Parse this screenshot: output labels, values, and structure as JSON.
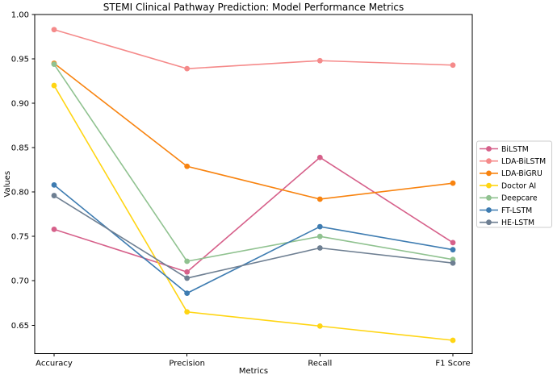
{
  "chart_data": {
    "type": "line",
    "title": "STEMI Clinical Pathway Prediction: Model Performance Metrics",
    "xlabel": "Metrics",
    "ylabel": "Values",
    "categories": [
      "Accuracy",
      "Precision",
      "Recall",
      "F1 Score"
    ],
    "series": [
      {
        "name": "BiLSTM",
        "color": "#d6608a",
        "values": [
          0.758,
          0.71,
          0.839,
          0.743
        ]
      },
      {
        "name": "LDA-BiLSTM",
        "color": "#f58a8a",
        "values": [
          0.983,
          0.939,
          0.948,
          0.943
        ]
      },
      {
        "name": "LDA-BiGRU",
        "color": "#f8830f",
        "values": [
          0.945,
          0.829,
          0.792,
          0.81
        ]
      },
      {
        "name": "Doctor AI",
        "color": "#ffd513",
        "values": [
          0.92,
          0.665,
          0.649,
          0.633
        ]
      },
      {
        "name": "Deepcare",
        "color": "#90c290",
        "values": [
          0.944,
          0.722,
          0.75,
          0.724
        ]
      },
      {
        "name": "FT-LSTM",
        "color": "#3e7cb1",
        "values": [
          0.808,
          0.686,
          0.761,
          0.735
        ]
      },
      {
        "name": "HE-LSTM",
        "color": "#6e7f92",
        "values": [
          0.796,
          0.703,
          0.737,
          0.72
        ]
      }
    ],
    "ylim": [
      0.618,
      1.0
    ],
    "yticks": [
      0.65,
      0.7,
      0.75,
      0.8,
      0.85,
      0.9,
      0.95,
      1.0
    ],
    "ytick_labels": [
      "0.65",
      "0.70",
      "0.75",
      "0.80",
      "0.85",
      "0.90",
      "0.95",
      "1.00"
    ],
    "grid": false,
    "marker": "circle",
    "legend": {
      "position": "center-right-outside",
      "border_color": "#cccccc",
      "background": "#ffffff"
    },
    "axis_color": "#000000"
  }
}
